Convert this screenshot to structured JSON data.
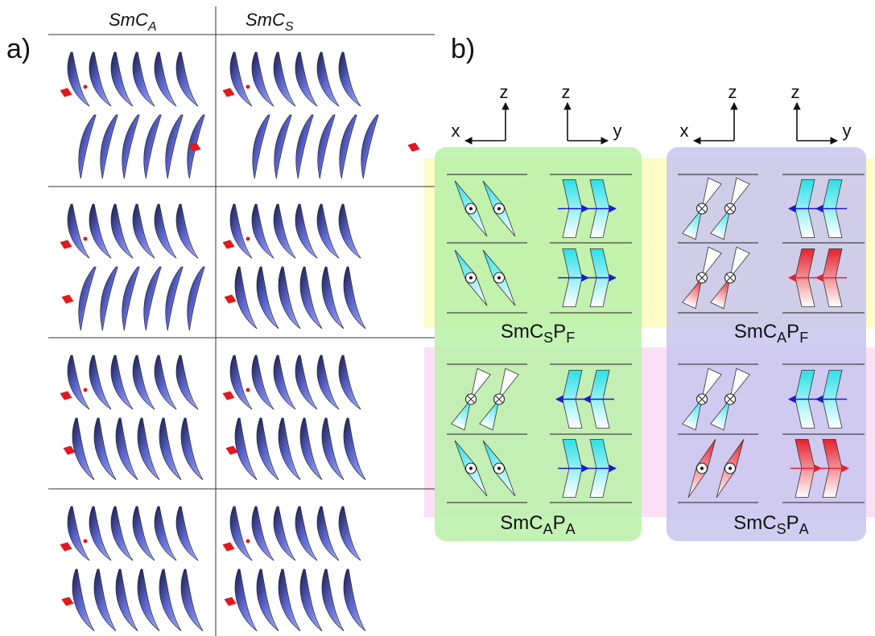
{
  "panel_a": {
    "label": "a)",
    "columns": [
      {
        "base": "SmC",
        "sub": "A"
      },
      {
        "base": "SmC",
        "sub": "S"
      }
    ]
  },
  "panel_b": {
    "label": "b)",
    "axes": [
      {
        "horizontal": "x",
        "vertical": "z"
      },
      {
        "vertical": "z",
        "horizontal": "y"
      },
      {
        "horizontal": "x",
        "vertical": "z"
      },
      {
        "vertical": "z",
        "horizontal": "y"
      }
    ],
    "phases": [
      {
        "base": "SmC",
        "sub": "S",
        "base2": "P",
        "sub2": "F"
      },
      {
        "base": "SmC",
        "sub": "A",
        "base2": "P",
        "sub2": "F"
      },
      {
        "base": "SmC",
        "sub": "A",
        "base2": "P",
        "sub2": "A"
      },
      {
        "base": "SmC",
        "sub": "S",
        "base2": "P",
        "sub2": "A"
      }
    ]
  }
}
